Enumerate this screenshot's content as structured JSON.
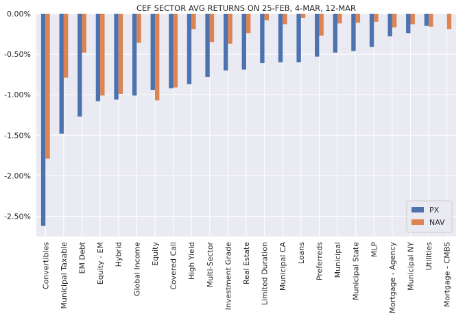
{
  "chart_data": {
    "type": "bar",
    "title": "CEF SECTOR AVG RETURNS ON 25-FEB, 4-MAR, 12-MAR",
    "xlabel": "",
    "ylabel": "",
    "ylim": [
      -2.75,
      0.0
    ],
    "y_ticks": [
      0.0,
      -0.5,
      -1.0,
      -1.5,
      -2.0,
      -2.5
    ],
    "y_tick_labels": [
      "0.00%",
      "-0.50%",
      "-1.00%",
      "-1.50%",
      "-2.00%",
      "-2.50%"
    ],
    "grid": true,
    "legend_position": "bottom-right",
    "categories": [
      "Convertibles",
      "Municipal Taxable",
      "EM Debt",
      "Equity - EM",
      "Hybrid",
      "Global Income",
      "Equity",
      "Covered Call",
      "High Yield",
      "Multi-Sector",
      "Investment Grade",
      "Real Estate",
      "Limited Duration",
      "Municipal CA",
      "Loans",
      "Preferreds",
      "Municipal",
      "Municipal State",
      "MLP",
      "Mortgage - Agency",
      "Municipal NY",
      "Utilities",
      "Mortgage - CMBS"
    ],
    "series": [
      {
        "name": "PX",
        "color": "#4c72b0",
        "values": [
          -2.62,
          -1.48,
          -1.27,
          -1.08,
          -1.06,
          -1.01,
          -0.94,
          -0.92,
          -0.87,
          -0.78,
          -0.7,
          -0.69,
          -0.61,
          -0.6,
          -0.6,
          -0.53,
          -0.48,
          -0.46,
          -0.41,
          -0.28,
          -0.24,
          -0.15,
          0.0
        ]
      },
      {
        "name": "NAV",
        "color": "#dd8452",
        "values": [
          -1.79,
          -0.79,
          -0.48,
          -1.01,
          -0.99,
          -0.36,
          -1.07,
          -0.91,
          -0.19,
          -0.35,
          -0.37,
          -0.24,
          -0.08,
          -0.13,
          -0.05,
          -0.27,
          -0.12,
          -0.11,
          -0.1,
          -0.17,
          -0.13,
          -0.16,
          -0.19
        ]
      }
    ]
  },
  "colors": {
    "plot_background": "#eaeaf2",
    "grid": "#ffffff",
    "text": "#262626"
  }
}
